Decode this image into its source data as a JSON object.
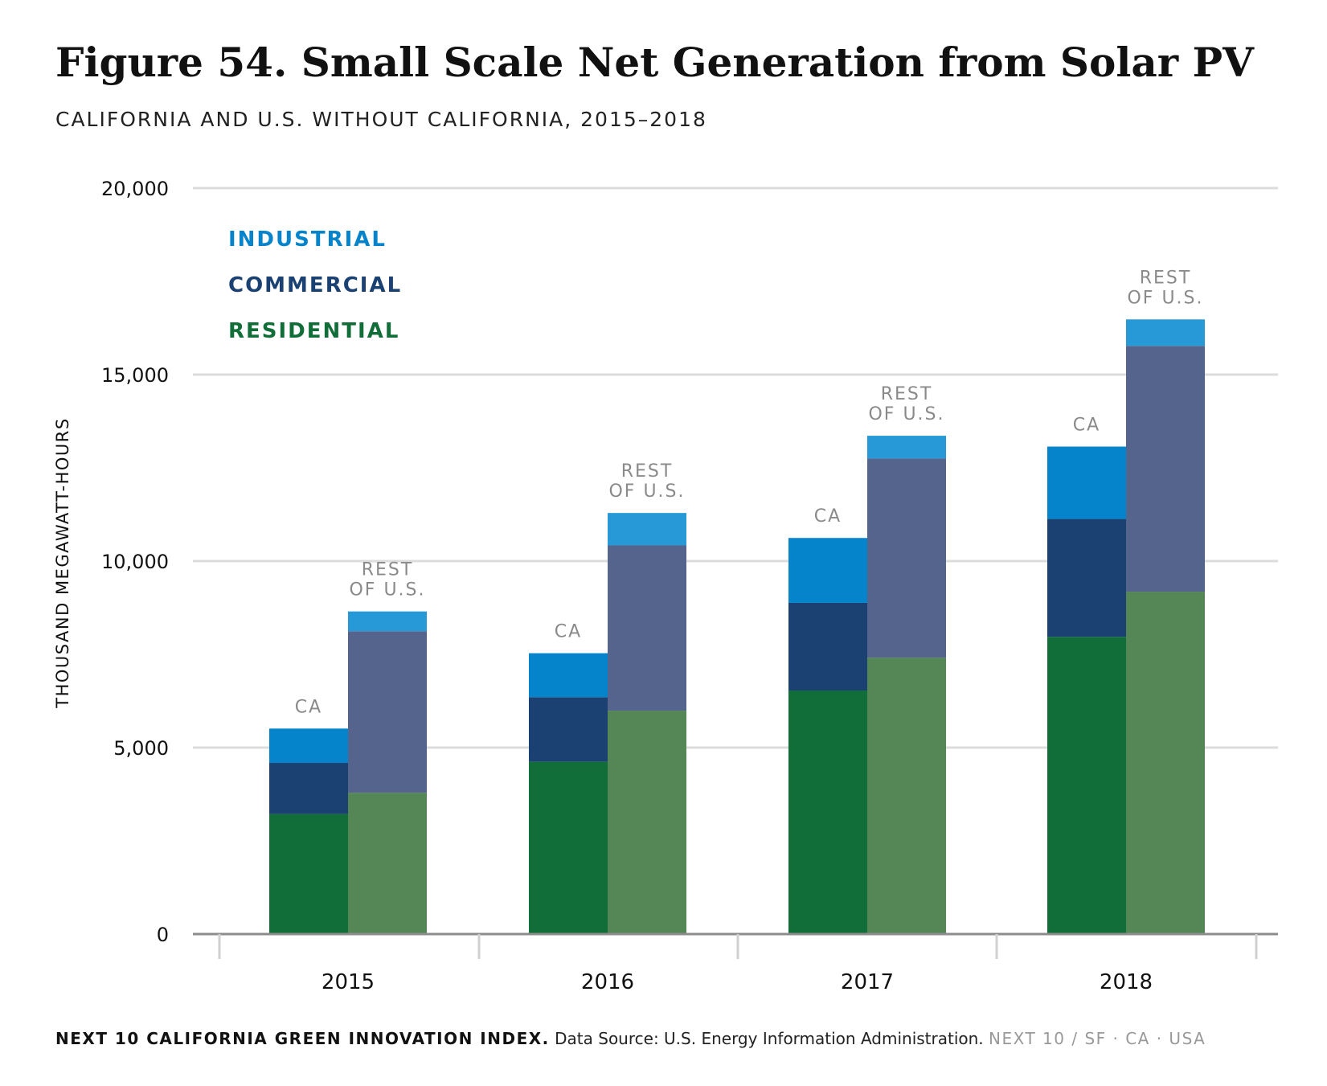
{
  "title": "Figure 54. Small Scale Net Generation from Solar PV",
  "subtitle": "CALIFORNIA AND U.S. WITHOUT CALIFORNIA, 2015–2018",
  "footer": {
    "org": "NEXT 10 CALIFORNIA GREEN INNOVATION INDEX.",
    "source": "Data Source: U.S. Energy Information Administration.",
    "brand": "NEXT 10  /  SF · CA · USA"
  },
  "chart_data": {
    "type": "bar",
    "stacked": true,
    "ylabel": "THOUSAND MEGAWATT-HOURS",
    "ylim": [
      0,
      20000
    ],
    "yticks": [
      0,
      5000,
      10000,
      15000,
      20000
    ],
    "ytick_labels": [
      "0",
      "5,000",
      "10,000",
      "15,000",
      "20,000"
    ],
    "grid": true,
    "legend_position": "top-left",
    "categories": [
      "2015",
      "2016",
      "2017",
      "2018"
    ],
    "groups": [
      {
        "label": "CA",
        "label_lines": [
          "CA"
        ]
      },
      {
        "label": "REST OF U.S.",
        "label_lines": [
          "REST",
          "OF U.S."
        ]
      }
    ],
    "series": [
      {
        "name": "RESIDENTIAL",
        "color": "#116e39",
        "group_colors": [
          "#116e39",
          "#548656"
        ],
        "values": {
          "CA": [
            3220,
            4620,
            6530,
            7970
          ],
          "REST OF U.S.": [
            3790,
            5990,
            7410,
            9180
          ]
        }
      },
      {
        "name": "COMMERCIAL",
        "color": "#1b4172",
        "group_colors": [
          "#1b4172",
          "#54648c"
        ],
        "values": {
          "CA": [
            1370,
            1730,
            2350,
            3160
          ],
          "REST OF U.S.": [
            4330,
            4430,
            5340,
            6590
          ]
        }
      },
      {
        "name": "INDUSTRIAL",
        "color": "#0584cc",
        "group_colors": [
          "#0584cc",
          "#2799d6"
        ],
        "values": {
          "CA": [
            920,
            1180,
            1740,
            1940
          ],
          "REST OF U.S.": [
            530,
            870,
            610,
            710
          ]
        }
      }
    ]
  }
}
